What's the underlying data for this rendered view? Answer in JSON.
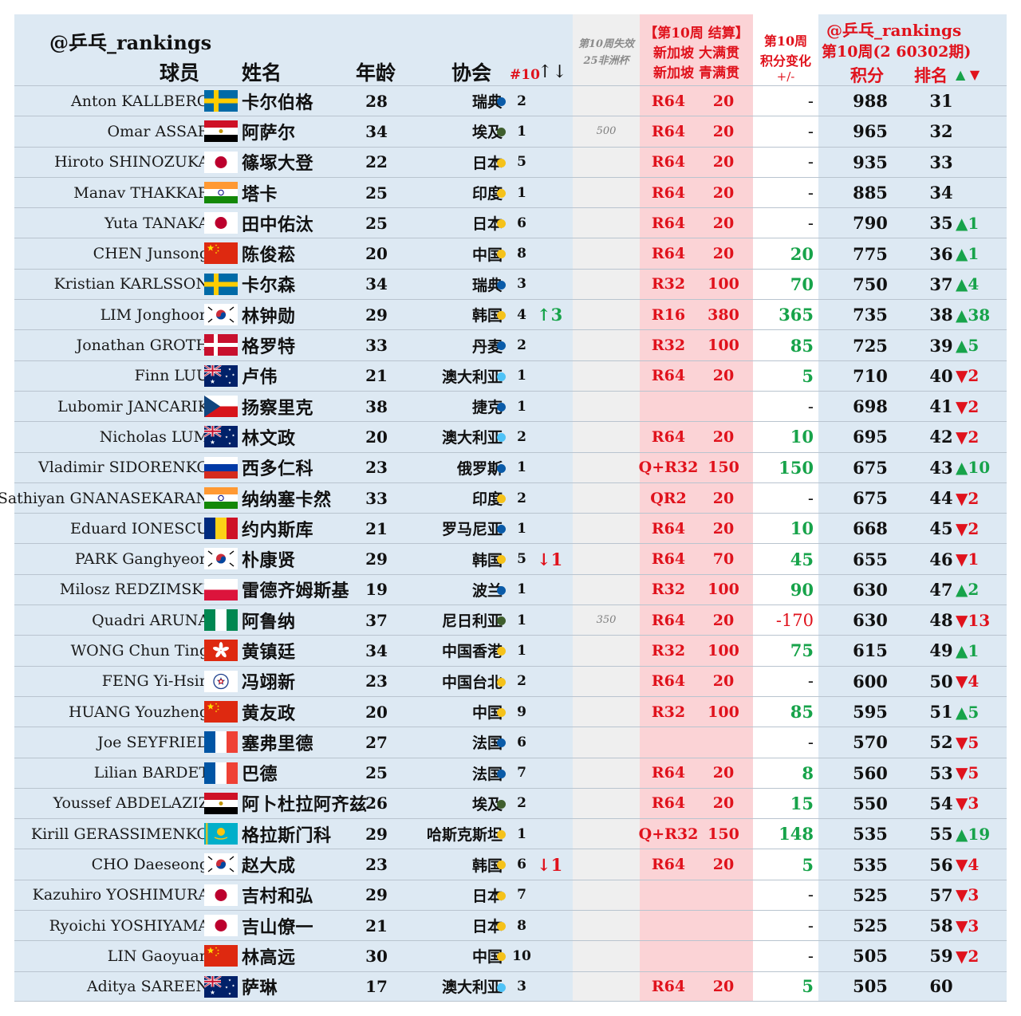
{
  "header": {
    "watermark": "@乒乓_rankings",
    "col_player": "球员",
    "col_name": "姓名",
    "col_age": "年龄",
    "col_assoc": "协会",
    "col_num10": "#10",
    "col_num10_arrows": "↑↓",
    "lost_line1": "第10周失效",
    "lost_line2": "25非洲杯",
    "sg_line1": "【第10周 结算】",
    "sg_line2": "新加坡 大满贯",
    "sg_line3": "新加坡 青满贯",
    "chg_line1": "第10周",
    "chg_line2": "积分变化",
    "chg_line3": "+/-",
    "pts_watermark": "@乒乓_rankings",
    "pts_week": "第10周(2 60302期)",
    "col_points": "积分",
    "col_rank": "排名",
    "rank_arrows": "▲ ▼"
  },
  "colors": {
    "sweden": "#0a5ba8",
    "egypt": "#3f5e2d",
    "japan": "#f5c21a",
    "india": "#f5c21a",
    "china": "#f5c21a",
    "korea": "#f5c21a",
    "denmark": "#0a5ba8",
    "australia": "#4fc3f7",
    "czech": "#0a5ba8",
    "russia": "#0a5ba8",
    "romania": "#0a5ba8",
    "poland": "#0a5ba8",
    "nigeria": "#3f5e2d",
    "hongkong": "#f5c21a",
    "taipei": "#f5c21a",
    "france": "#0a5ba8",
    "kazakhstan": "#f5c21a"
  },
  "players": [
    {
      "name": "Anton KALLBERG",
      "flag": "sweden",
      "cn": "卡尔伯格",
      "age": "28",
      "assoc": "瑞典",
      "dot": "sweden",
      "num10": "2",
      "move": "",
      "lost": "",
      "round": "R64",
      "sgpts": "20",
      "change": "-",
      "points": "988",
      "rank": "31",
      "rchg": ""
    },
    {
      "name": "Omar ASSAR",
      "flag": "egypt",
      "cn": "阿萨尔",
      "age": "34",
      "assoc": "埃及",
      "dot": "egypt",
      "num10": "1",
      "move": "",
      "lost": "500",
      "round": "R64",
      "sgpts": "20",
      "change": "-",
      "points": "965",
      "rank": "32",
      "rchg": ""
    },
    {
      "name": "Hiroto SHINOZUKA",
      "flag": "japan",
      "cn": "篠塚大登",
      "age": "22",
      "assoc": "日本",
      "dot": "japan",
      "num10": "5",
      "move": "",
      "lost": "",
      "round": "R64",
      "sgpts": "20",
      "change": "-",
      "points": "935",
      "rank": "33",
      "rchg": ""
    },
    {
      "name": "Manav THAKKAR",
      "flag": "india",
      "cn": "塔卡",
      "age": "25",
      "assoc": "印度",
      "dot": "india",
      "num10": "1",
      "move": "",
      "lost": "",
      "round": "R64",
      "sgpts": "20",
      "change": "-",
      "points": "885",
      "rank": "34",
      "rchg": ""
    },
    {
      "name": "Yuta TANAKA",
      "flag": "japan",
      "cn": "田中佑汰",
      "age": "25",
      "assoc": "日本",
      "dot": "japan",
      "num10": "6",
      "move": "",
      "lost": "",
      "round": "R64",
      "sgpts": "20",
      "change": "-",
      "points": "790",
      "rank": "35",
      "rchg": "▲1"
    },
    {
      "name": "CHEN Junsong",
      "flag": "china",
      "cn": "陈俊菘",
      "age": "20",
      "assoc": "中国",
      "dot": "china",
      "num10": "8",
      "move": "",
      "lost": "",
      "round": "R64",
      "sgpts": "20",
      "change": "20",
      "points": "775",
      "rank": "36",
      "rchg": "▲1"
    },
    {
      "name": "Kristian KARLSSON",
      "flag": "sweden",
      "cn": "卡尔森",
      "age": "34",
      "assoc": "瑞典",
      "dot": "sweden",
      "num10": "3",
      "move": "",
      "lost": "",
      "round": "R32",
      "sgpts": "100",
      "change": "70",
      "points": "750",
      "rank": "37",
      "rchg": "▲4"
    },
    {
      "name": "LIM Jonghoon",
      "flag": "korea",
      "cn": "林钟勋",
      "age": "29",
      "assoc": "韩国",
      "dot": "korea",
      "num10": "4",
      "move": "↑3",
      "lost": "",
      "round": "R16",
      "sgpts": "380",
      "change": "365",
      "points": "735",
      "rank": "38",
      "rchg": "▲38"
    },
    {
      "name": "Jonathan GROTH",
      "flag": "denmark",
      "cn": "格罗特",
      "age": "33",
      "assoc": "丹麦",
      "dot": "denmark",
      "num10": "2",
      "move": "",
      "lost": "",
      "round": "R32",
      "sgpts": "100",
      "change": "85",
      "points": "725",
      "rank": "39",
      "rchg": "▲5"
    },
    {
      "name": "Finn LUU",
      "flag": "australia",
      "cn": "卢伟",
      "age": "21",
      "assoc": "澳大利亚",
      "dot": "australia",
      "num10": "1",
      "move": "",
      "lost": "",
      "round": "R64",
      "sgpts": "20",
      "change": "5",
      "points": "710",
      "rank": "40",
      "rchg": "▼2"
    },
    {
      "name": "Lubomir JANCARIK",
      "flag": "czech",
      "cn": "扬察里克",
      "age": "38",
      "assoc": "捷克",
      "dot": "czech",
      "num10": "1",
      "move": "",
      "lost": "",
      "round": "",
      "sgpts": "",
      "change": "-",
      "points": "698",
      "rank": "41",
      "rchg": "▼2"
    },
    {
      "name": "Nicholas LUM",
      "flag": "australia",
      "cn": "林文政",
      "age": "20",
      "assoc": "澳大利亚",
      "dot": "australia",
      "num10": "2",
      "move": "",
      "lost": "",
      "round": "R64",
      "sgpts": "20",
      "change": "10",
      "points": "695",
      "rank": "42",
      "rchg": "▼2"
    },
    {
      "name": "Vladimir SIDORENKO",
      "flag": "russia",
      "cn": "西多仁科",
      "age": "23",
      "assoc": "俄罗斯",
      "dot": "russia",
      "num10": "1",
      "move": "",
      "lost": "",
      "round": "Q+R32",
      "sgpts": "150",
      "change": "150",
      "points": "675",
      "rank": "43",
      "rchg": "▲10"
    },
    {
      "name": "Sathiyan GNANASEKARAN",
      "flag": "india",
      "cn": "纳纳塞卡然",
      "age": "33",
      "assoc": "印度",
      "dot": "india",
      "num10": "2",
      "move": "",
      "lost": "",
      "round": "QR2",
      "sgpts": "20",
      "change": "-",
      "points": "675",
      "rank": "44",
      "rchg": "▼2"
    },
    {
      "name": "Eduard IONESCU",
      "flag": "romania",
      "cn": "约内斯库",
      "age": "21",
      "assoc": "罗马尼亚",
      "dot": "romania",
      "num10": "1",
      "move": "",
      "lost": "",
      "round": "R64",
      "sgpts": "20",
      "change": "10",
      "points": "668",
      "rank": "45",
      "rchg": "▼2"
    },
    {
      "name": "PARK Ganghyeon",
      "flag": "korea",
      "cn": "朴康贤",
      "age": "29",
      "assoc": "韩国",
      "dot": "korea",
      "num10": "5",
      "move": "↓1",
      "lost": "",
      "round": "R64",
      "sgpts": "70",
      "change": "45",
      "points": "655",
      "rank": "46",
      "rchg": "▼1"
    },
    {
      "name": "Milosz REDZIMSKI",
      "flag": "poland",
      "cn": "雷德齐姆斯基",
      "age": "19",
      "assoc": "波兰",
      "dot": "poland",
      "num10": "1",
      "move": "",
      "lost": "",
      "round": "R32",
      "sgpts": "100",
      "change": "90",
      "points": "630",
      "rank": "47",
      "rchg": "▲2"
    },
    {
      "name": "Quadri ARUNA",
      "flag": "nigeria",
      "cn": "阿鲁纳",
      "age": "37",
      "assoc": "尼日利亚",
      "dot": "nigeria",
      "num10": "1",
      "move": "",
      "lost": "350",
      "round": "R64",
      "sgpts": "20",
      "change": "-170",
      "points": "630",
      "rank": "48",
      "rchg": "▼13"
    },
    {
      "name": "WONG Chun Ting",
      "flag": "hongkong",
      "cn": "黄镇廷",
      "age": "34",
      "assoc": "中国香港",
      "dot": "hongkong",
      "num10": "1",
      "move": "",
      "lost": "",
      "round": "R32",
      "sgpts": "100",
      "change": "75",
      "points": "615",
      "rank": "49",
      "rchg": "▲1"
    },
    {
      "name": "FENG Yi-Hsin",
      "flag": "taipei",
      "cn": "冯翊新",
      "age": "23",
      "assoc": "中国台北",
      "dot": "taipei",
      "num10": "2",
      "move": "",
      "lost": "",
      "round": "R64",
      "sgpts": "20",
      "change": "-",
      "points": "600",
      "rank": "50",
      "rchg": "▼4"
    },
    {
      "name": "HUANG Youzheng",
      "flag": "china",
      "cn": "黄友政",
      "age": "20",
      "assoc": "中国",
      "dot": "china",
      "num10": "9",
      "move": "",
      "lost": "",
      "round": "R32",
      "sgpts": "100",
      "change": "85",
      "points": "595",
      "rank": "51",
      "rchg": "▲5"
    },
    {
      "name": "Joe SEYFRIED",
      "flag": "france",
      "cn": "塞弗里德",
      "age": "27",
      "assoc": "法国",
      "dot": "france",
      "num10": "6",
      "move": "",
      "lost": "",
      "round": "",
      "sgpts": "",
      "change": "-",
      "points": "570",
      "rank": "52",
      "rchg": "▼5"
    },
    {
      "name": "Lilian BARDET",
      "flag": "france",
      "cn": "巴德",
      "age": "25",
      "assoc": "法国",
      "dot": "france",
      "num10": "7",
      "move": "",
      "lost": "",
      "round": "R64",
      "sgpts": "20",
      "change": "8",
      "points": "560",
      "rank": "53",
      "rchg": "▼5"
    },
    {
      "name": "Youssef ABDELAZIZ",
      "flag": "egypt",
      "cn": "阿卜杜拉阿齐兹",
      "age": "26",
      "assoc": "埃及",
      "dot": "egypt",
      "num10": "2",
      "move": "",
      "lost": "",
      "round": "R64",
      "sgpts": "20",
      "change": "15",
      "points": "550",
      "rank": "54",
      "rchg": "▼3"
    },
    {
      "name": "Kirill GERASSIMENKO",
      "flag": "kazakhstan",
      "cn": "格拉斯门科",
      "age": "29",
      "assoc": "哈斯克斯坦",
      "dot": "kazakhstan",
      "num10": "1",
      "move": "",
      "lost": "",
      "round": "Q+R32",
      "sgpts": "150",
      "change": "148",
      "points": "535",
      "rank": "55",
      "rchg": "▲19"
    },
    {
      "name": "CHO Daeseong",
      "flag": "korea",
      "cn": "赵大成",
      "age": "23",
      "assoc": "韩国",
      "dot": "korea",
      "num10": "6",
      "move": "↓1",
      "lost": "",
      "round": "R64",
      "sgpts": "20",
      "change": "5",
      "points": "535",
      "rank": "56",
      "rchg": "▼4"
    },
    {
      "name": "Kazuhiro YOSHIMURA",
      "flag": "japan",
      "cn": "吉村和弘",
      "age": "29",
      "assoc": "日本",
      "dot": "japan",
      "num10": "7",
      "move": "",
      "lost": "",
      "round": "",
      "sgpts": "",
      "change": "-",
      "points": "525",
      "rank": "57",
      "rchg": "▼3"
    },
    {
      "name": "Ryoichi YOSHIYAMA",
      "flag": "japan",
      "cn": "吉山僚一",
      "age": "21",
      "assoc": "日本",
      "dot": "japan",
      "num10": "8",
      "move": "",
      "lost": "",
      "round": "",
      "sgpts": "",
      "change": "-",
      "points": "525",
      "rank": "58",
      "rchg": "▼3"
    },
    {
      "name": "LIN Gaoyuan",
      "flag": "china",
      "cn": "林高远",
      "age": "30",
      "assoc": "中国",
      "dot": "china",
      "num10": "10",
      "move": "",
      "lost": "",
      "round": "",
      "sgpts": "",
      "change": "-",
      "points": "505",
      "rank": "59",
      "rchg": "▼2"
    },
    {
      "name": "Aditya SAREEN",
      "flag": "australia",
      "cn": "萨琳",
      "age": "17",
      "assoc": "澳大利亚",
      "dot": "australia",
      "num10": "3",
      "move": "",
      "lost": "",
      "round": "R64",
      "sgpts": "20",
      "change": "5",
      "points": "505",
      "rank": "60",
      "rchg": ""
    }
  ]
}
